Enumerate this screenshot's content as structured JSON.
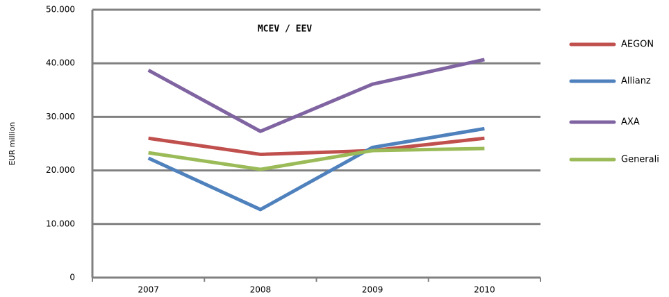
{
  "chart_data": {
    "type": "line",
    "title": "MCEV / EEV",
    "y_label": "EUR million",
    "categories": [
      "2007",
      "2008",
      "2009",
      "2010"
    ],
    "series": [
      {
        "name": "AEGON",
        "color": "#c0504d",
        "values": [
          26000,
          23000,
          23700,
          26000
        ]
      },
      {
        "name": "Allianz",
        "color": "#4f81bd",
        "values": [
          22300,
          12700,
          24300,
          27800
        ]
      },
      {
        "name": "AXA",
        "color": "#8064a2",
        "values": [
          38700,
          27300,
          36100,
          40700
        ]
      },
      {
        "name": "Generali",
        "color": "#9bbb59",
        "values": [
          23300,
          20200,
          23700,
          24100
        ]
      }
    ],
    "ylim": [
      0,
      50000
    ],
    "yticks": [
      {
        "value": 0,
        "label": "0"
      },
      {
        "value": 10000,
        "label": "10.000"
      },
      {
        "value": 20000,
        "label": "20.000"
      },
      {
        "value": 30000,
        "label": "30.000"
      },
      {
        "value": 40000,
        "label": "40.000"
      },
      {
        "value": 50000,
        "label": "50.000"
      }
    ],
    "grid": true,
    "legend": "right"
  }
}
